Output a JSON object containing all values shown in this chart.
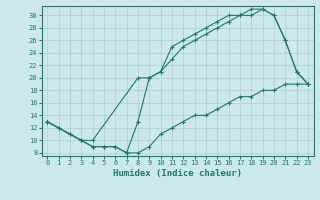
{
  "line1_x": [
    0,
    1,
    2,
    3,
    4,
    8,
    9,
    10,
    11,
    12,
    13,
    14,
    15,
    16,
    17,
    18,
    19,
    20,
    21,
    22,
    23
  ],
  "line1_y": [
    13,
    12,
    11,
    10,
    10,
    20,
    20,
    21,
    25,
    26,
    27,
    28,
    29,
    30,
    30,
    31,
    31,
    30,
    26,
    21,
    19
  ],
  "line2_x": [
    0,
    3,
    4,
    5,
    6,
    7,
    8,
    9,
    10,
    11,
    12,
    13,
    14,
    15,
    16,
    17,
    18,
    19,
    20,
    21,
    22,
    23
  ],
  "line2_y": [
    13,
    10,
    9,
    9,
    9,
    8,
    13,
    20,
    21,
    23,
    25,
    26,
    27,
    28,
    29,
    30,
    30,
    31,
    30,
    26,
    21,
    19
  ],
  "line3_x": [
    0,
    1,
    2,
    3,
    4,
    5,
    6,
    7,
    8,
    9,
    10,
    11,
    12,
    13,
    14,
    15,
    16,
    17,
    18,
    19,
    20,
    21,
    22,
    23
  ],
  "line3_y": [
    13,
    12,
    11,
    10,
    9,
    9,
    9,
    8,
    8,
    9,
    11,
    12,
    13,
    14,
    14,
    15,
    16,
    17,
    17,
    18,
    18,
    19,
    19,
    19
  ],
  "color": "#1a7a6e",
  "bg_color": "#cde8ec",
  "grid_color": "#aacdd4",
  "xlabel": "Humidex (Indice chaleur)",
  "xlim": [
    -0.5,
    23.5
  ],
  "ylim": [
    7.5,
    31.5
  ],
  "yticks": [
    8,
    10,
    12,
    14,
    16,
    18,
    20,
    22,
    24,
    26,
    28,
    30
  ],
  "xticks": [
    0,
    1,
    2,
    3,
    4,
    5,
    6,
    7,
    8,
    9,
    10,
    11,
    12,
    13,
    14,
    15,
    16,
    17,
    18,
    19,
    20,
    21,
    22,
    23
  ],
  "marker": "+",
  "markersize": 3,
  "linewidth": 0.8,
  "xlabel_fontsize": 6.5,
  "tick_fontsize": 5
}
